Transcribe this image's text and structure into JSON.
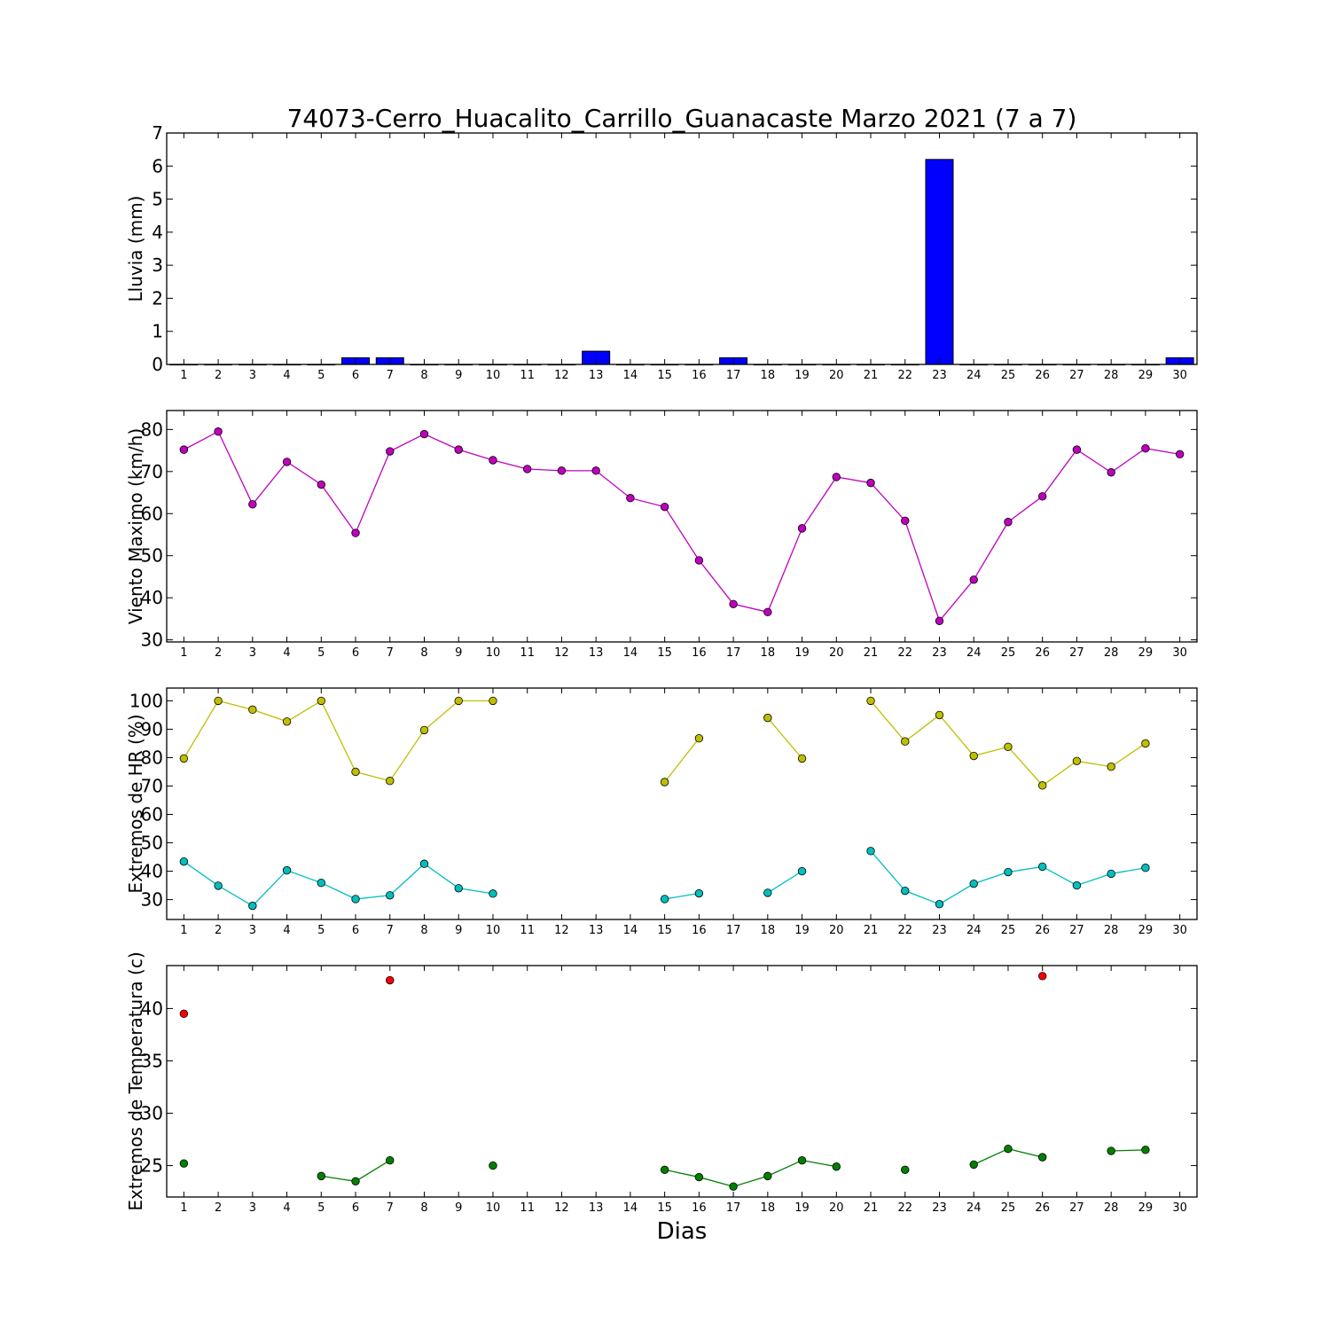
{
  "chart_data": {
    "type": "multi-panel",
    "title": "74073-Cerro_Huacalito_Carrillo_Guanacaste Marzo 2021  (7 a 7)",
    "xlabel": "Dias",
    "days": [
      1,
      2,
      3,
      4,
      5,
      6,
      7,
      8,
      9,
      10,
      11,
      12,
      13,
      14,
      15,
      16,
      17,
      18,
      19,
      20,
      21,
      22,
      23,
      24,
      25,
      26,
      27,
      28,
      29,
      30
    ],
    "xlim": [
      0.5,
      30.5
    ],
    "panels": [
      {
        "type": "bar",
        "ylabel": "Lluvia (mm)",
        "ylim": [
          0,
          7
        ],
        "yticks": [
          0,
          1,
          2,
          3,
          4,
          5,
          6,
          7
        ],
        "series": [
          {
            "color": "#0000ff",
            "values": [
              0,
              0,
              0,
              0,
              0,
              0.2,
              0.2,
              0,
              0,
              0,
              0,
              0,
              0.4,
              0,
              0,
              0,
              0.2,
              0,
              0,
              0,
              0,
              0,
              6.2,
              0,
              0,
              0,
              0,
              0,
              0,
              0.2
            ]
          }
        ]
      },
      {
        "type": "line",
        "ylabel": "Viento Maximo (km/h)",
        "ylim": [
          29.5,
          84.5
        ],
        "yticks": [
          30,
          40,
          50,
          60,
          70,
          80
        ],
        "series": [
          {
            "color": "#bf00bf",
            "values": [
              75.2,
              79.5,
              62.2,
              72.3,
              66.9,
              55.4,
              74.8,
              78.9,
              75.2,
              72.7,
              70.6,
              70.2,
              70.2,
              63.7,
              61.6,
              48.9,
              38.5,
              36.6,
              56.5,
              68.7,
              67.3,
              58.3,
              34.5,
              44.3,
              58.0,
              64.1,
              75.2,
              69.8,
              75.5,
              74.1
            ]
          }
        ]
      },
      {
        "type": "line",
        "ylabel": "Extremos de HR (%)",
        "ylim": [
          23,
          104.5
        ],
        "yticks": [
          30,
          40,
          50,
          60,
          70,
          80,
          90,
          100
        ],
        "series": [
          {
            "color": "#bfbf00",
            "values": [
              79.7,
              100,
              96.9,
              92.7,
              100,
              75.0,
              71.8,
              89.7,
              100,
              100,
              null,
              null,
              null,
              null,
              71.4,
              86.8,
              null,
              94.0,
              79.7,
              null,
              100,
              85.7,
              95.0,
              80.6,
              83.8,
              70.2,
              78.8,
              76.8,
              85.0,
              null
            ]
          },
          {
            "color": "#00bfbf",
            "values": [
              43.4,
              34.9,
              27.8,
              40.3,
              35.9,
              30.2,
              31.5,
              42.6,
              34.0,
              32.1,
              null,
              null,
              null,
              null,
              30.2,
              32.2,
              null,
              32.4,
              40.0,
              null,
              47.1,
              33.1,
              28.4,
              35.6,
              39.7,
              41.6,
              35.0,
              39.1,
              41.2,
              null
            ]
          }
        ]
      },
      {
        "type": "line",
        "ylabel": "Extremos de Temperatura (c)",
        "ylim": [
          22.0,
          44.1
        ],
        "yticks": [
          25,
          30,
          35,
          40
        ],
        "series": [
          {
            "color": "#ff0000",
            "values": [
              39.5,
              null,
              null,
              null,
              null,
              null,
              42.7,
              null,
              null,
              null,
              null,
              null,
              null,
              null,
              null,
              null,
              null,
              null,
              null,
              null,
              null,
              null,
              null,
              null,
              null,
              43.1,
              null,
              null,
              null,
              null
            ]
          },
          {
            "color": "#008000",
            "values": [
              25.2,
              null,
              null,
              null,
              24.0,
              23.5,
              25.5,
              null,
              null,
              25.0,
              null,
              null,
              null,
              null,
              24.6,
              23.9,
              23.0,
              24.0,
              25.5,
              24.9,
              null,
              24.6,
              null,
              25.1,
              26.6,
              25.8,
              null,
              26.4,
              26.5,
              null
            ]
          }
        ]
      }
    ]
  }
}
